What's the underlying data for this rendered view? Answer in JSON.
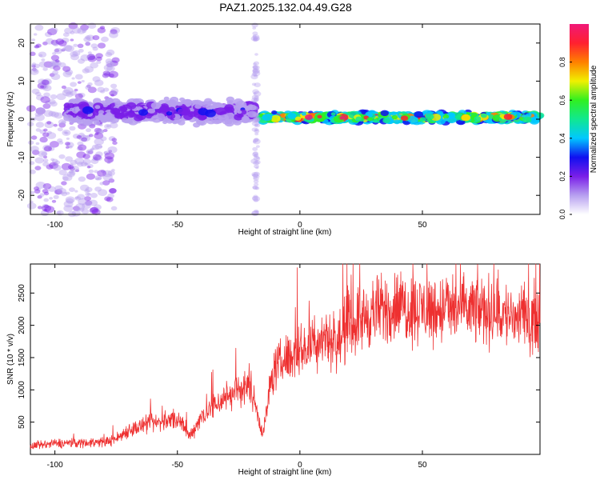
{
  "title": "PAZ1.2025.132.04.49.G28",
  "chart_data": [
    {
      "type": "heatmap",
      "xlabel": "Height of straight line (km)",
      "ylabel": "Frequency (Hz)",
      "xlim": [
        -110,
        98
      ],
      "ylim": [
        -25,
        25
      ],
      "xticks": [
        -100,
        -50,
        0,
        50
      ],
      "yticks": [
        -20,
        -10,
        0,
        10,
        20
      ],
      "colorbar": {
        "label": "Normalized spectral amplitude",
        "range": [
          0,
          1
        ],
        "ticks": [
          0.0,
          0.2,
          0.4,
          0.6,
          0.8
        ],
        "colormap": [
          "#ffffff",
          "#b7a0f0",
          "#7a1ee8",
          "#1010f0",
          "#00c8ff",
          "#10e890",
          "#30f020",
          "#f0f000",
          "#ff8000",
          "#ff2030",
          "#f01878"
        ]
      },
      "features": [
        {
          "x_range": [
            -110,
            -75
          ],
          "y_range": [
            -25,
            25
          ],
          "amplitude": 0.1,
          "note": "scattered diffuse energy"
        },
        {
          "x_range": [
            -95,
            -18
          ],
          "center_freq_hz": 2.0,
          "bandwidth_hz": 4,
          "amplitude": 0.25
        },
        {
          "x_range": [
            -16,
            98
          ],
          "center_freq_hz": 0.5,
          "bandwidth_hz": 1.5,
          "amplitude": 0.9
        }
      ]
    },
    {
      "type": "line",
      "xlabel": "Height of straight line (km)",
      "ylabel": "SNR (10 * v/v)",
      "xlim": [
        -110,
        98
      ],
      "ylim": [
        0,
        2950
      ],
      "xticks": [
        -100,
        -50,
        0,
        50
      ],
      "yticks": [
        500,
        1000,
        1500,
        2000,
        2500
      ],
      "series": [
        {
          "color": "#ee3030",
          "x": [
            -110,
            -100,
            -90,
            -80,
            -75,
            -70,
            -60,
            -50,
            -45,
            -40,
            -35,
            -30,
            -25,
            -20,
            -15,
            -12,
            -10,
            -5,
            0,
            5,
            10,
            15,
            20,
            25,
            30,
            40,
            50,
            60,
            70,
            80,
            90,
            98
          ],
          "values": [
            120,
            170,
            180,
            190,
            240,
            380,
            480,
            550,
            280,
            600,
            750,
            900,
            1000,
            1050,
            300,
            1100,
            1350,
            1500,
            1600,
            1700,
            1850,
            1700,
            2000,
            2100,
            2200,
            2300,
            2250,
            2250,
            2250,
            2200,
            2100,
            2100
          ]
        }
      ]
    }
  ]
}
